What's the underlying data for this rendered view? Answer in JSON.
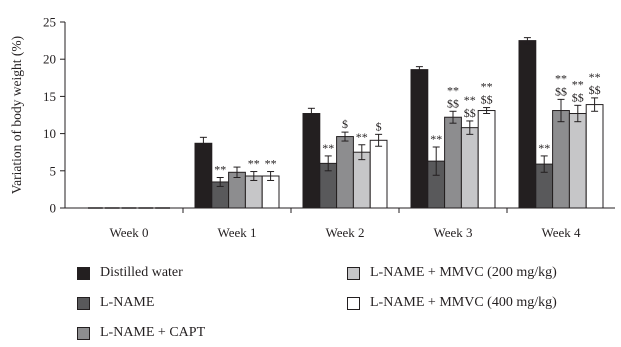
{
  "chart_data": {
    "type": "bar",
    "ylabel": "Variation of body weight (%)",
    "xlabel": "",
    "ylim": [
      0,
      25
    ],
    "yticks": [
      0,
      5,
      10,
      15,
      20,
      25
    ],
    "categories": [
      "Week 0",
      "Week 1",
      "Week 2",
      "Week 3",
      "Week 4"
    ],
    "series": [
      {
        "name": "Distilled water",
        "color": "#231f20",
        "values": [
          0,
          8.7,
          12.7,
          18.6,
          22.5
        ],
        "errors": [
          0,
          0.8,
          0.7,
          0.4,
          0.4
        ],
        "annotations": [
          "",
          "",
          "",
          "",
          ""
        ]
      },
      {
        "name": "L-NAME",
        "color": "#59595b",
        "values": [
          0,
          3.5,
          6.0,
          6.3,
          5.9
        ],
        "errors": [
          0,
          0.6,
          1.0,
          1.9,
          1.1
        ],
        "annotations": [
          "",
          "**",
          "**",
          "**",
          "**"
        ]
      },
      {
        "name": "L-NAME + CAPT",
        "color": "#8d8d8f",
        "values": [
          0,
          4.8,
          9.6,
          12.2,
          13.1
        ],
        "errors": [
          0,
          0.7,
          0.6,
          0.8,
          1.5
        ],
        "annotations": [
          "",
          "",
          "$",
          "**\n$$",
          "**\n$$"
        ]
      },
      {
        "name": "L-NAME + MMVC (200 mg/kg)",
        "color": "#c6c6c8",
        "values": [
          0,
          4.3,
          7.5,
          10.8,
          12.7
        ],
        "errors": [
          0,
          0.6,
          1.0,
          0.9,
          1.1
        ],
        "annotations": [
          "",
          "**",
          "**",
          "**\n$$",
          "**\n$$"
        ]
      },
      {
        "name": "L-NAME + MMVC (400 mg/kg)",
        "color": "#ffffff",
        "values": [
          0,
          4.3,
          9.1,
          13.1,
          13.9
        ],
        "errors": [
          0,
          0.6,
          0.8,
          0.4,
          0.9
        ],
        "annotations": [
          "",
          "**",
          "$",
          "**\n$$",
          "**\n$$"
        ]
      }
    ]
  }
}
